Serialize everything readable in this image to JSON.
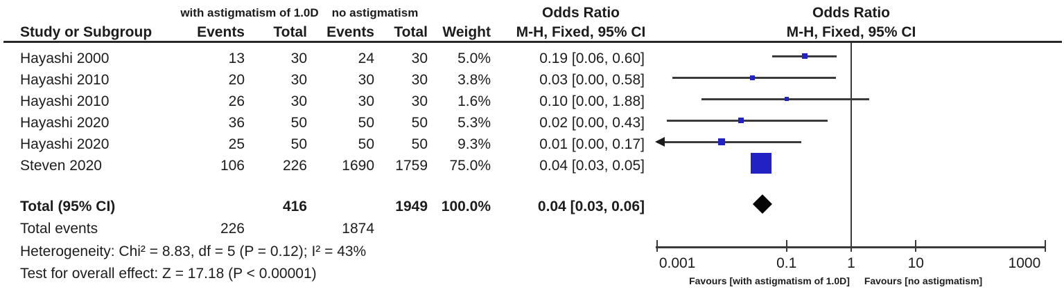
{
  "figure": {
    "header": {
      "group1_label": "with astigmatism of 1.0D",
      "group2_label": "no astigmatism",
      "study_col": "Study or Subgroup",
      "events_col": "Events",
      "total_col": "Total",
      "weight_col": "Weight",
      "odds_ratio_title": "Odds Ratio",
      "method_ci_label": "M-H, Fixed, 95% CI"
    },
    "total_row": {
      "label": "Total (95% CI)",
      "total1": "416",
      "total2": "1949",
      "weight": "100.0%",
      "ci_text": "0.04 [0.03, 0.06]"
    },
    "total_events_row": {
      "label": "Total events",
      "events1": "226",
      "events2": "1874"
    },
    "heterogeneity_line": "Heterogeneity: Chi² = 8.83, df = 5 (P = 0.12); I² = 43%",
    "overall_effect_line": "Test for overall effect: Z = 17.18 (P < 0.00001)",
    "favours_left": "Favours [with astigmatism of 1.0D]",
    "favours_right": "Favours [no astigmatism]",
    "colors": {
      "marker_blue": "#2222c4",
      "diamond_black": "#050505",
      "line": "#3a3a3a"
    }
  },
  "chart_data": {
    "type": "forest",
    "title": "Odds Ratio",
    "method": "M-H, Fixed, 95% CI",
    "x_scale": "log",
    "x_ticks": [
      0.001,
      0.1,
      1,
      10,
      1000
    ],
    "x_tick_labels": [
      "0.001",
      "0.1",
      "1",
      "10",
      "1000"
    ],
    "x_axis_label_left": "Favours [with astigmatism of 1.0D]",
    "x_axis_label_right": "Favours [no astigmatism]",
    "studies": [
      {
        "name": "Hayashi 2000",
        "events1": 13,
        "total1": 30,
        "events2": 24,
        "total2": 30,
        "weight": "5.0%",
        "or": 0.19,
        "ci_low": 0.06,
        "ci_high": 0.6,
        "ci_text": "0.19 [0.06, 0.60]",
        "plot_low": 0.06,
        "plot_high": 0.6,
        "arrow_left": false
      },
      {
        "name": "Hayashi 2010",
        "events1": 20,
        "total1": 30,
        "events2": 30,
        "total2": 30,
        "weight": "3.8%",
        "or": 0.03,
        "ci_low": 0.0,
        "ci_high": 0.58,
        "ci_text": "0.03 [0.00, 0.58]",
        "plot_low": 0.0017,
        "plot_high": 0.58,
        "arrow_left": false
      },
      {
        "name": "Hayashi 2010",
        "events1": 26,
        "total1": 30,
        "events2": 30,
        "total2": 30,
        "weight": "1.6%",
        "or": 0.1,
        "ci_low": 0.0,
        "ci_high": 1.88,
        "ci_text": "0.10 [0.00, 1.88]",
        "plot_low": 0.0048,
        "plot_high": 1.88,
        "arrow_left": false
      },
      {
        "name": "Hayashi 2020",
        "events1": 36,
        "total1": 50,
        "events2": 50,
        "total2": 50,
        "weight": "5.3%",
        "or": 0.02,
        "ci_low": 0.0,
        "ci_high": 0.43,
        "ci_text": "0.02 [0.00, 0.43]",
        "plot_low": 0.0014,
        "plot_high": 0.43,
        "arrow_left": false
      },
      {
        "name": "Hayashi 2020",
        "events1": 25,
        "total1": 50,
        "events2": 50,
        "total2": 50,
        "weight": "9.3%",
        "or": 0.01,
        "ci_low": 0.0,
        "ci_high": 0.17,
        "ci_text": "0.01 [0.00, 0.17]",
        "plot_low": 0.001,
        "plot_high": 0.17,
        "arrow_left": true
      },
      {
        "name": "Steven 2020",
        "events1": 106,
        "total1": 226,
        "events2": 1690,
        "total2": 1759,
        "weight": "75.0%",
        "or": 0.04,
        "ci_low": 0.03,
        "ci_high": 0.05,
        "ci_text": "0.04 [0.03, 0.05]",
        "plot_low": 0.03,
        "plot_high": 0.05,
        "arrow_left": false
      }
    ],
    "total": {
      "label": "Total (95% CI)",
      "total1": 416,
      "total2": 1949,
      "weight_pct": 100.0,
      "or": 0.04,
      "ci_low": 0.03,
      "ci_high": 0.06,
      "ci_text": "0.04 [0.03, 0.06]"
    },
    "total_events": {
      "group1": 226,
      "group2": 1874
    },
    "heterogeneity": {
      "chi2": 8.83,
      "df": 5,
      "p": 0.12,
      "i2_pct": 43
    },
    "overall_effect": {
      "z": 17.18,
      "p": "< 0.00001"
    }
  }
}
